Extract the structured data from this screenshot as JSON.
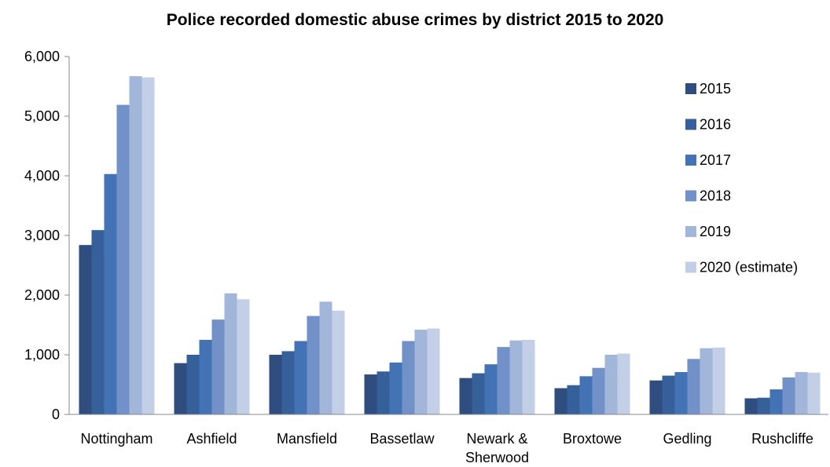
{
  "chart_data": {
    "type": "bar",
    "title": "Police recorded domestic abuse crimes by district 2015 to 2020",
    "xlabel": "",
    "ylabel": "",
    "ylim": [
      0,
      6000
    ],
    "yticks": [
      "0",
      "1,000",
      "2,000",
      "3,000",
      "4,000",
      "5,000",
      "6,000"
    ],
    "grid": false,
    "legend_position": "right",
    "categories": [
      [
        "Nottingham"
      ],
      [
        "Ashfield"
      ],
      [
        "Mansfield"
      ],
      [
        "Bassetlaw"
      ],
      [
        "Newark &",
        "Sherwood"
      ],
      [
        "Broxtowe"
      ],
      [
        "Gedling"
      ],
      [
        "Rushcliffe"
      ]
    ],
    "series": [
      {
        "name": "2015",
        "color": "#2F4D7E",
        "values": [
          2840,
          860,
          1000,
          670,
          610,
          440,
          570,
          270
        ]
      },
      {
        "name": "2016",
        "color": "#36609A",
        "values": [
          3090,
          1000,
          1060,
          720,
          690,
          490,
          650,
          280
        ]
      },
      {
        "name": "2017",
        "color": "#4373B5",
        "values": [
          4030,
          1250,
          1230,
          870,
          840,
          640,
          710,
          420
        ]
      },
      {
        "name": "2018",
        "color": "#7191C8",
        "values": [
          5190,
          1590,
          1650,
          1230,
          1130,
          780,
          930,
          620
        ]
      },
      {
        "name": "2019",
        "color": "#A2B6DA",
        "values": [
          5670,
          2030,
          1890,
          1420,
          1240,
          1000,
          1110,
          710
        ]
      },
      {
        "name": "2020 (estimate)",
        "color": "#C3CFE6",
        "values": [
          5650,
          1930,
          1740,
          1440,
          1250,
          1020,
          1120,
          700
        ]
      }
    ]
  }
}
